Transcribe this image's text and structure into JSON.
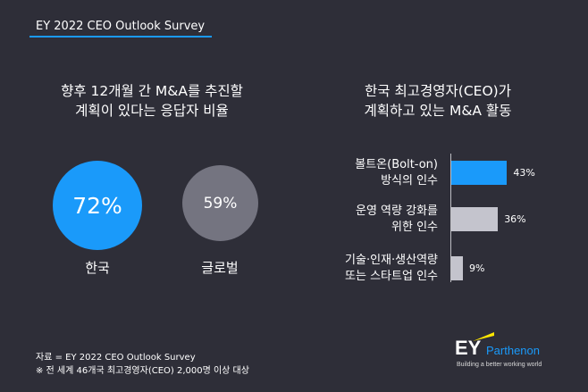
{
  "header": {
    "title": "EY 2022 CEO Outlook Survey"
  },
  "left": {
    "title_lines": [
      "향후 12개월 간 M&A를 추진할",
      "계획이 있다는 응답자 비율"
    ]
  },
  "right": {
    "title_lines": [
      "한국 최고경영자(CEO)가",
      "계획하고 있는 M&A 활동"
    ]
  },
  "chart_data": [
    {
      "type": "pie",
      "categories": [
        "한국",
        "글로벌"
      ],
      "values": [
        72,
        59
      ],
      "value_labels": [
        "72%",
        "59%"
      ],
      "colors": [
        "#1a9afa",
        "#747480"
      ]
    },
    {
      "type": "bar",
      "orientation": "horizontal",
      "categories": [
        [
          "볼트온(Bolt-on)",
          "방식의 인수"
        ],
        [
          "운영 역량 강화를",
          "위한 인수"
        ],
        [
          "기술·인재·생산역량",
          "또는 스타트업 인수"
        ]
      ],
      "values": [
        43,
        36,
        9
      ],
      "value_labels": [
        "43%",
        "36%",
        "9%"
      ],
      "colors": [
        "#1a9afa",
        "#c4c4cd",
        "#c4c4cd"
      ],
      "xlim": [
        0,
        100
      ]
    }
  ],
  "footer": {
    "source": "자료 = EY 2022 CEO Outlook Survey",
    "note": "※ 전 세계 46개국 최고경영자(CEO) 2,000명 이상 대상"
  },
  "logo": {
    "ey": "EY",
    "parthenon": "Parthenon",
    "tagline": "Building a better working world"
  }
}
